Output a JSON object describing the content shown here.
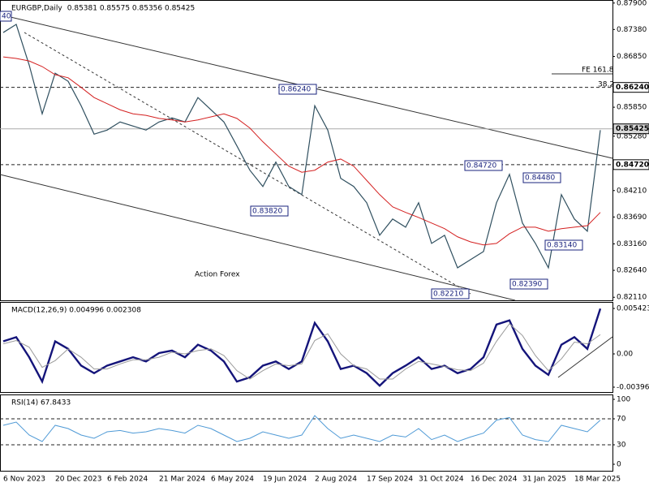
{
  "chart_data": [
    {
      "type": "line",
      "title": "EURGBP,Daily",
      "subtitle": "0.85381 0.85575 0.85356 0.85425",
      "categories": [
        "6 Nov 2023",
        null,
        null,
        null,
        "20 Dec 2023",
        null,
        null,
        null,
        "6 Feb 2024",
        null,
        null,
        null,
        "21 Mar 2024",
        null,
        null,
        null,
        "6 May 2024",
        null,
        null,
        null,
        "19 Jun 2024",
        null,
        null,
        null,
        "2 Aug 2024",
        null,
        null,
        null,
        "17 Sep 2024",
        null,
        null,
        null,
        "31 Oct 2024",
        null,
        null,
        null,
        "16 Dec 2024",
        null,
        null,
        null,
        "31 Jan 2025",
        null,
        null,
        null,
        "18 Mar 2025",
        null,
        null
      ],
      "series": [
        {
          "color": "#2f4f5f",
          "width": 1.2,
          "values": [
            0.8732,
            0.8748,
            0.8668,
            0.8572,
            0.8652,
            0.8636,
            0.8588,
            0.8532,
            0.854,
            0.8556,
            0.8548,
            0.854,
            0.8556,
            0.8564,
            0.8556,
            0.8604,
            0.858,
            0.8556,
            0.8509,
            0.8461,
            0.8429,
            0.8477,
            0.8429,
            0.8413,
            0.8588,
            0.854,
            0.8445,
            0.8429,
            0.8397,
            0.8333,
            0.8365,
            0.8349,
            0.8397,
            0.8317,
            0.8333,
            0.8269,
            0.8285,
            0.8301,
            0.8397,
            0.8453,
            0.8357,
            0.8317,
            0.8269,
            0.8413,
            0.8365,
            0.8341,
            0.854
          ]
        },
        {
          "color": "#d42020",
          "width": 1,
          "values": [
            0.8684,
            0.8681,
            0.8676,
            0.8665,
            0.8649,
            0.8643,
            0.8624,
            0.8604,
            0.8592,
            0.858,
            0.8572,
            0.8569,
            0.8563,
            0.856,
            0.8556,
            0.856,
            0.8566,
            0.8572,
            0.8563,
            0.8544,
            0.8517,
            0.8493,
            0.8469,
            0.8457,
            0.8461,
            0.8477,
            0.8483,
            0.8469,
            0.8441,
            0.8413,
            0.8389,
            0.8378,
            0.8368,
            0.8357,
            0.8346,
            0.833,
            0.832,
            0.8314,
            0.8317,
            0.8336,
            0.8349,
            0.8349,
            0.8341,
            0.8346,
            0.8349,
            0.8352,
            0.8378
          ]
        }
      ],
      "ylim": [
        0.8205,
        0.8796
      ],
      "yticks": [
        {
          "value": 0.879,
          "label": "0.87900"
        },
        {
          "value": 0.8738,
          "label": "0.87380"
        },
        {
          "value": 0.8685,
          "label": "0.86850"
        },
        {
          "value": 0.8585,
          "label": "0.85850"
        },
        {
          "value": 0.8528,
          "label": "0.85280"
        },
        {
          "value": 0.8421,
          "label": "0.84210"
        },
        {
          "value": 0.8369,
          "label": "0.83690"
        },
        {
          "value": 0.8316,
          "label": "0.83160"
        },
        {
          "value": 0.8264,
          "label": "0.82640"
        },
        {
          "value": 0.8211,
          "label": "0.82110"
        }
      ],
      "levels": [
        {
          "value": 0.8624,
          "label": "0.86240",
          "dash": true
        },
        {
          "value": 0.85425,
          "label": "0.85425",
          "dash": false
        },
        {
          "value": 0.8472,
          "label": "0.84720",
          "dash": true
        }
      ],
      "annotations": [
        "40",
        "0.86240",
        "0.83820",
        "0.82210",
        "0.84720",
        "0.84480",
        "0.83140",
        "0.82390",
        "FE 161.8",
        "38.2"
      ],
      "watermark": "Action Forex"
    },
    {
      "type": "line",
      "title": "MACD(12,26,9) 0.004996 0.002308",
      "series": [
        {
          "color": "#14147a",
          "width": 2.4,
          "values": [
            0.0015,
            0.002,
            -0.0004,
            -0.0033,
            0.0015,
            0.0006,
            -0.0014,
            -0.0023,
            -0.0014,
            -0.0009,
            -0.0004,
            -0.0009,
            0.0001,
            0.0004,
            -0.0004,
            0.0011,
            0.0004,
            -0.0009,
            -0.0033,
            -0.0028,
            -0.0014,
            -0.0009,
            -0.0018,
            -0.0009,
            0.0037,
            0.0015,
            -0.0018,
            -0.0014,
            -0.0023,
            -0.0038,
            -0.0023,
            -0.0014,
            -0.0004,
            -0.0018,
            -0.0014,
            -0.0023,
            -0.0018,
            -0.0004,
            0.0035,
            0.004,
            0.0006,
            -0.0014,
            -0.0025,
            0.0011,
            0.002,
            0.0006,
            0.0054
          ]
        },
        {
          "color": "#9a9a9a",
          "width": 1,
          "values": [
            0.0012,
            0.0016,
            0.0008,
            -0.0016,
            -0.0008,
            0.0006,
            -0.0004,
            -0.0018,
            -0.0018,
            -0.0012,
            -0.0007,
            -0.0007,
            -0.0004,
            0.0002,
            0,
            0.0004,
            0.0006,
            -0.0002,
            -0.002,
            -0.003,
            -0.002,
            -0.0012,
            -0.0014,
            -0.0012,
            0.0016,
            0.0024,
            0,
            -0.0014,
            -0.0018,
            -0.003,
            -0.003,
            -0.0018,
            -0.0009,
            -0.0012,
            -0.0015,
            -0.0019,
            -0.002,
            -0.0011,
            0.0015,
            0.0036,
            0.0022,
            -0.0002,
            -0.002,
            -0.0006,
            0.0014,
            0.0012,
            0.0023
          ]
        }
      ],
      "ylim": [
        -0.00455,
        0.0062
      ],
      "yticks": [
        0.005423,
        {
          "value": 0,
          "label": "0.00"
        },
        -0.003968
      ]
    },
    {
      "type": "line",
      "title": "RSI(14) 67.8433",
      "series": [
        {
          "color": "#4f9ad6",
          "width": 1,
          "values": [
            60,
            65,
            45,
            35,
            60,
            55,
            45,
            40,
            50,
            52,
            48,
            50,
            55,
            52,
            48,
            60,
            55,
            45,
            35,
            40,
            50,
            45,
            40,
            45,
            75,
            55,
            40,
            45,
            40,
            35,
            45,
            42,
            55,
            38,
            45,
            35,
            42,
            48,
            68,
            72,
            45,
            38,
            35,
            60,
            55,
            50,
            68
          ]
        }
      ],
      "ylim": [
        -10,
        107.5
      ],
      "yticks": [
        100,
        70,
        30,
        0
      ],
      "levels": [
        {
          "value": 70,
          "dash": true
        },
        {
          "value": 30,
          "dash": true
        }
      ]
    }
  ]
}
